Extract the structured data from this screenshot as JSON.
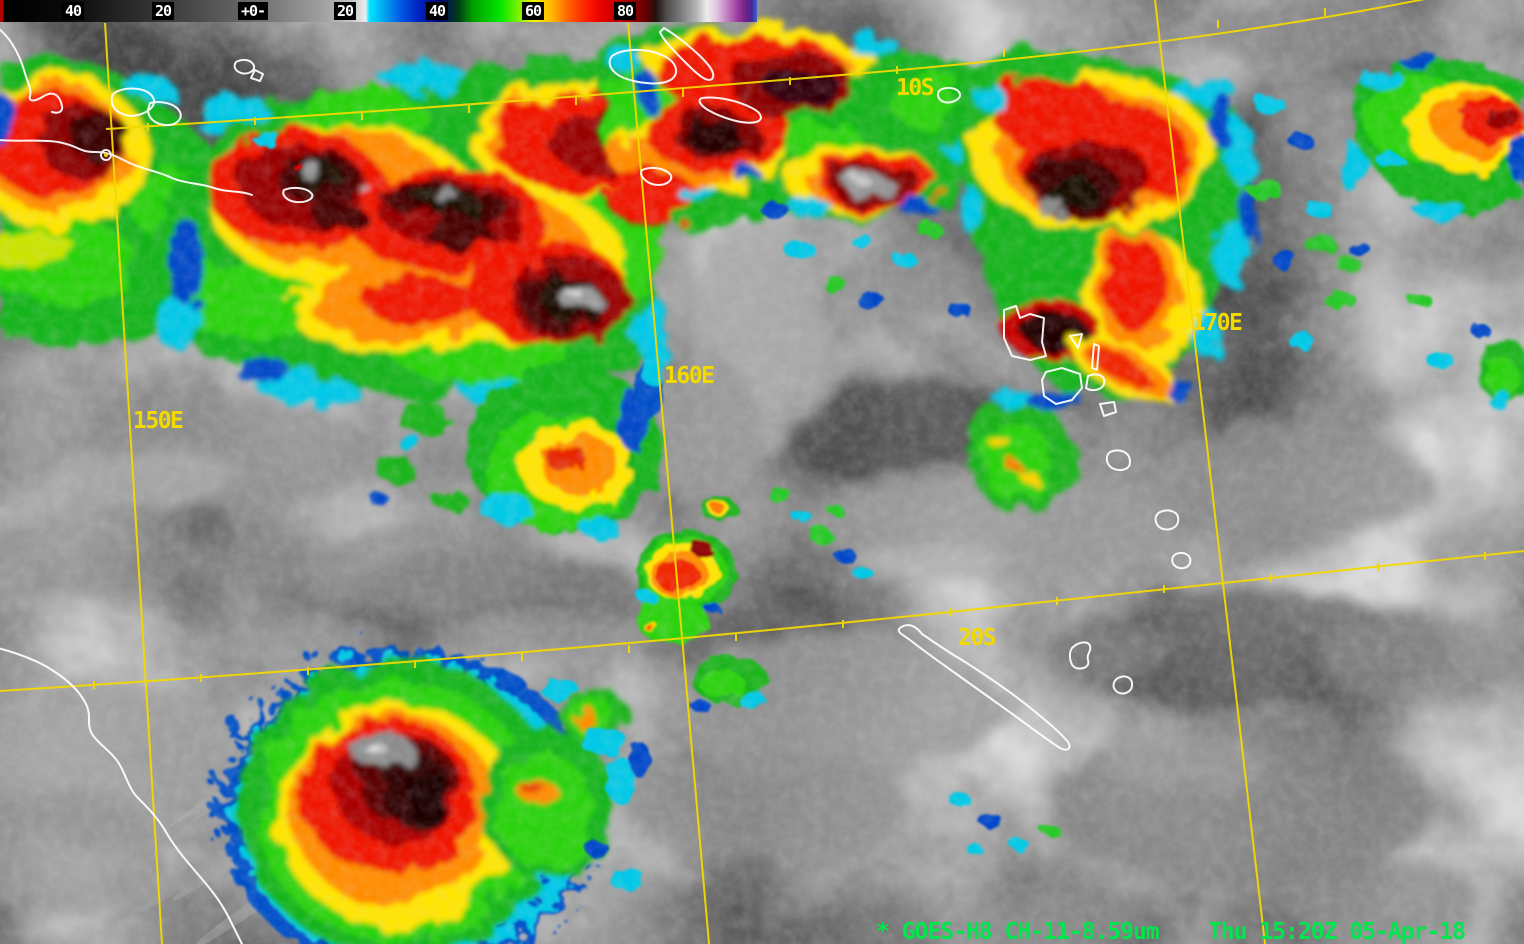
{
  "colorbar": {
    "labels": [
      {
        "text": "40"
      },
      {
        "text": "20"
      },
      {
        "text": "+0-"
      },
      {
        "text": "20"
      },
      {
        "text": "40"
      },
      {
        "text": "60"
      },
      {
        "text": "80"
      }
    ]
  },
  "grid": {
    "meridians": [
      {
        "label": "150E"
      },
      {
        "label": "160E"
      },
      {
        "label": "170E"
      }
    ],
    "parallels": [
      {
        "label": "10S"
      },
      {
        "label": "20S"
      }
    ]
  },
  "annotation": {
    "satellite_channel": "* GOES-H8 CH-11-8.59um",
    "datetime": "Thu 15:20Z 05-Apr-18"
  },
  "colors": {
    "grid": "#f2d900",
    "annotation": "#00e64d",
    "coastline": "#ffffff",
    "enhancement_palette": [
      "#00c8ff",
      "#0028c8",
      "#00c800",
      "#ffff00",
      "#ff8c00",
      "#ff0000",
      "#800000",
      "#1a0000",
      "#c0c0c0",
      "#a020c0"
    ]
  }
}
